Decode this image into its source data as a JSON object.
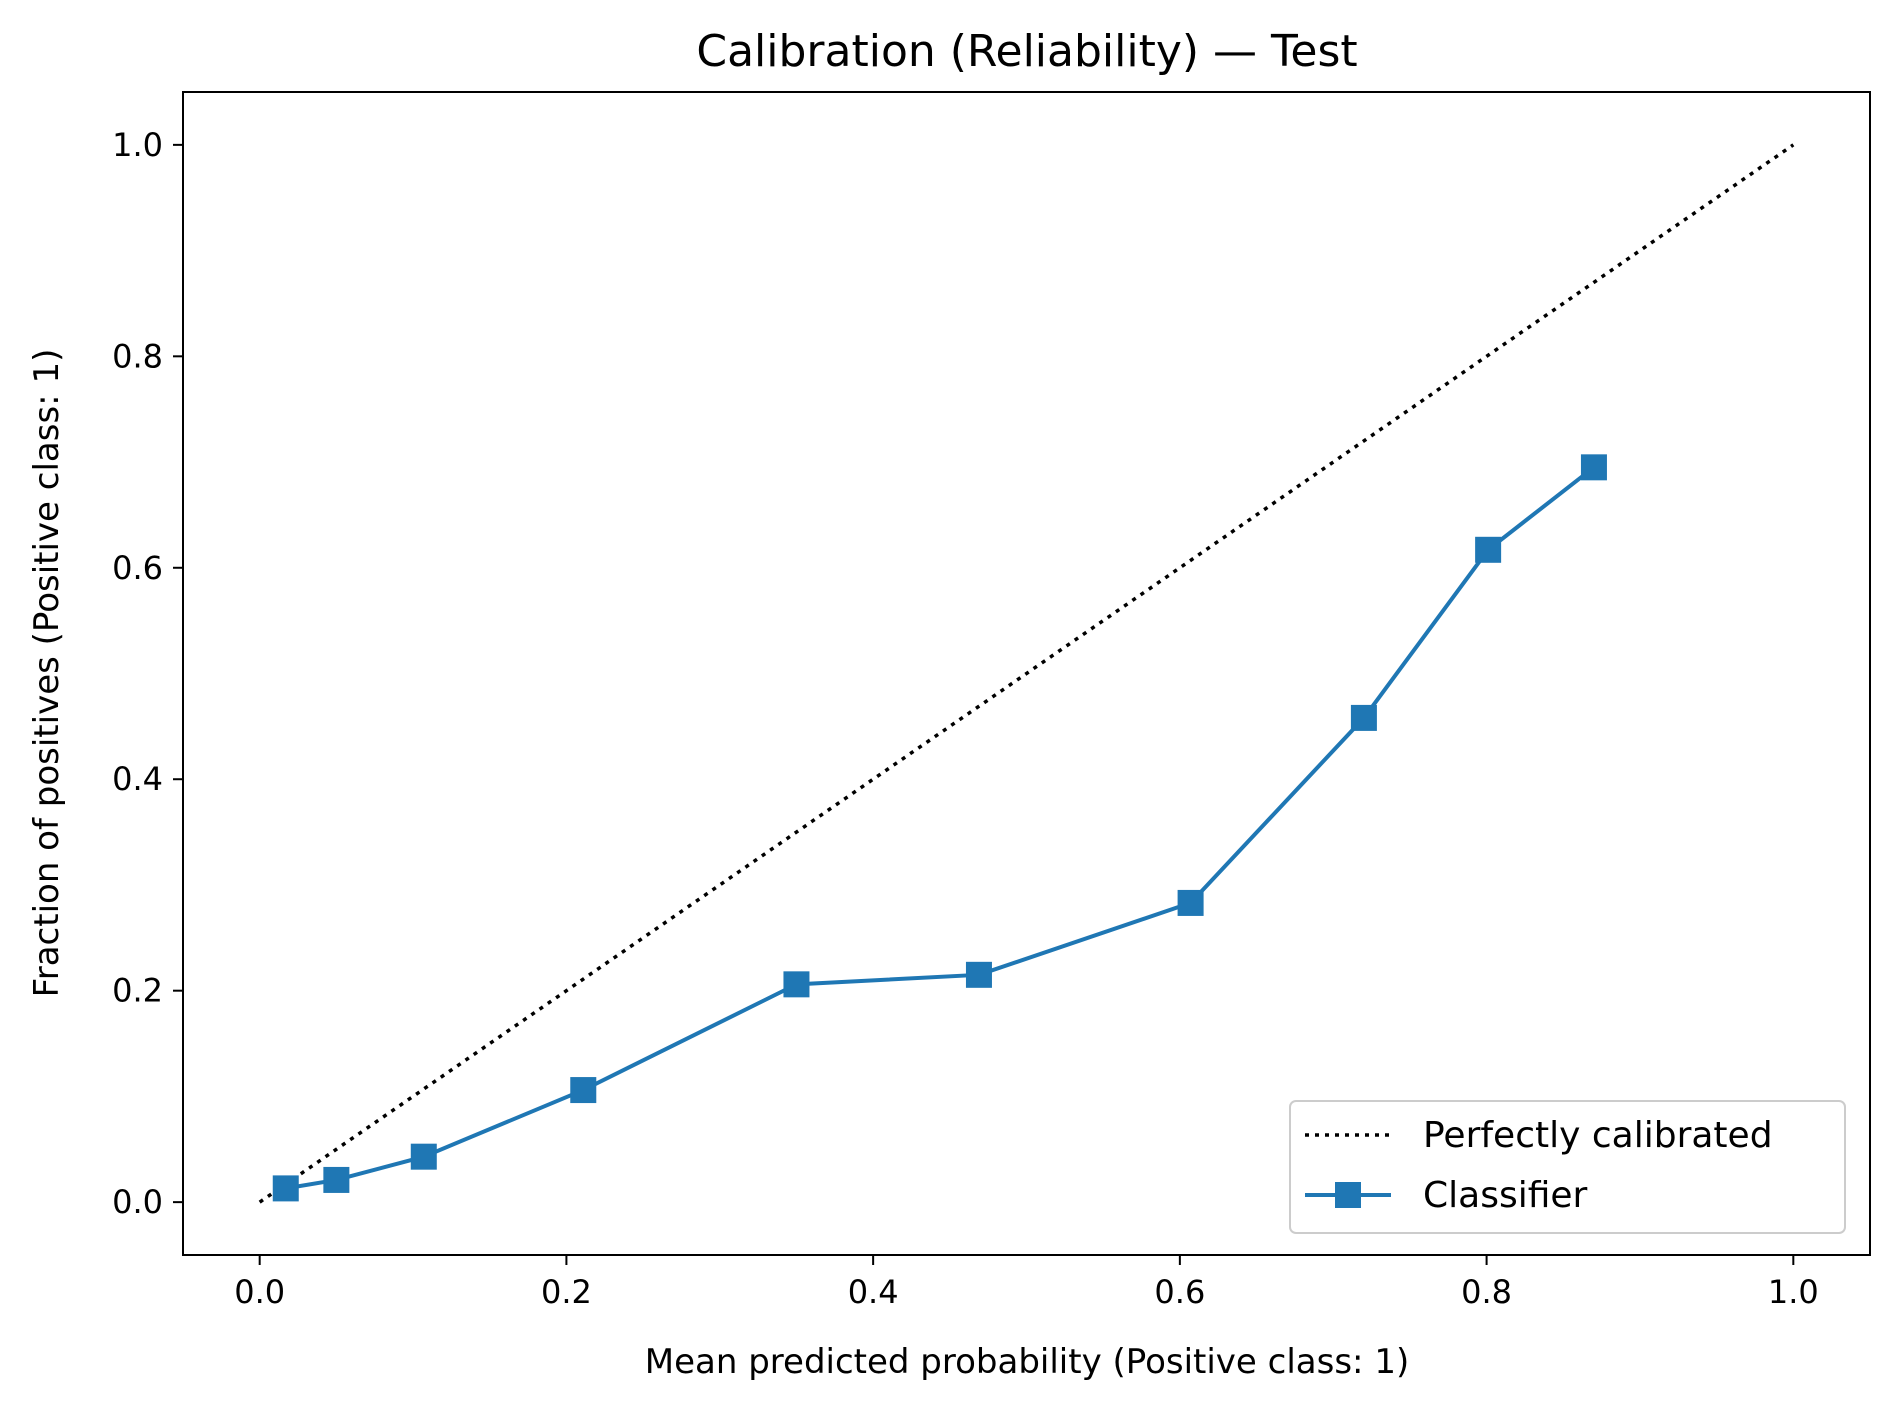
{
  "chart_data": {
    "type": "line",
    "title": "Calibration (Reliability) — Test",
    "xlabel": "Mean predicted probability (Positive class: 1)",
    "ylabel": "Fraction of positives (Positive class: 1)",
    "xlim": [
      -0.05,
      1.05
    ],
    "ylim": [
      -0.05,
      1.05
    ],
    "xticks": [
      "0.0",
      "0.2",
      "0.4",
      "0.6",
      "0.8",
      "1.0"
    ],
    "yticks": [
      "0.0",
      "0.2",
      "0.4",
      "0.6",
      "0.8",
      "1.0"
    ],
    "grid": false,
    "legend": {
      "position": "lower-right",
      "entries": [
        "Perfectly calibrated",
        "Classifier"
      ]
    },
    "series": [
      {
        "name": "Perfectly calibrated",
        "style": "dotted",
        "color": "#000000",
        "x": [
          0.0,
          1.0
        ],
        "y": [
          0.0,
          1.0
        ]
      },
      {
        "name": "Classifier",
        "style": "solid",
        "marker": "square",
        "color": "#1f77b4",
        "x": [
          0.017,
          0.05,
          0.107,
          0.211,
          0.35,
          0.469,
          0.607,
          0.72,
          0.801,
          0.87
        ],
        "y": [
          0.013,
          0.021,
          0.043,
          0.106,
          0.206,
          0.215,
          0.283,
          0.458,
          0.617,
          0.695
        ]
      }
    ]
  }
}
